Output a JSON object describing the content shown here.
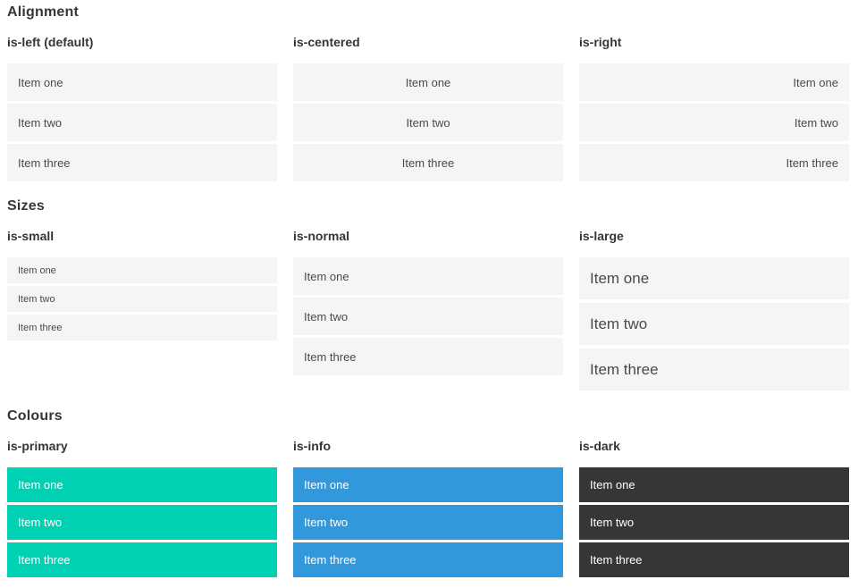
{
  "colors": {
    "primary": "#00d1b2",
    "info": "#3298dc",
    "dark": "#363636",
    "item_background": "#f5f5f5",
    "item_text": "#4a4a4a",
    "heading_text": "#363636",
    "colored_item_text": "#ffffff",
    "page_background": "#ffffff"
  },
  "sections": [
    {
      "title": "Alignment",
      "columns": [
        {
          "label": "is-left (default)",
          "modifier": "align-left",
          "items": [
            "Item one",
            "Item two",
            "Item three"
          ]
        },
        {
          "label": "is-centered",
          "modifier": "align-center",
          "items": [
            "Item one",
            "Item two",
            "Item three"
          ]
        },
        {
          "label": "is-right",
          "modifier": "align-right",
          "items": [
            "Item one",
            "Item two",
            "Item three"
          ]
        }
      ]
    },
    {
      "title": "Sizes",
      "columns": [
        {
          "label": "is-small",
          "modifier": "size-small",
          "items": [
            "Item one",
            "Item two",
            "Item three"
          ]
        },
        {
          "label": "is-normal",
          "modifier": "size-normal",
          "items": [
            "Item one",
            "Item two",
            "Item three"
          ]
        },
        {
          "label": "is-large",
          "modifier": "size-large",
          "items": [
            "Item one",
            "Item two",
            "Item three"
          ]
        }
      ]
    },
    {
      "title": "Colours",
      "columns": [
        {
          "label": "is-primary",
          "modifier": "color-primary",
          "items": [
            "Item one",
            "Item two",
            "Item three"
          ]
        },
        {
          "label": "is-info",
          "modifier": "color-info",
          "items": [
            "Item one",
            "Item two",
            "Item three"
          ]
        },
        {
          "label": "is-dark",
          "modifier": "color-dark",
          "items": [
            "Item one",
            "Item two",
            "Item three"
          ]
        }
      ]
    }
  ]
}
